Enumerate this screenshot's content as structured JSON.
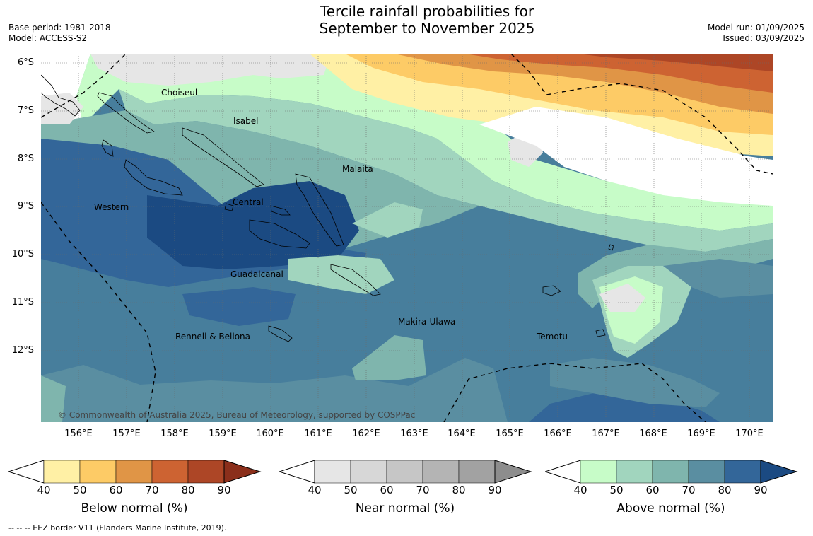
{
  "header": {
    "title_line1": "Tercile rainfall probabilities for",
    "title_line2": "September to November 2025",
    "base_period": "Base period: 1981-2018",
    "model": "Model: ACCESS-S2",
    "model_run": "Model run: 01/09/2025",
    "issued": "Issued: 03/09/2025"
  },
  "map": {
    "lat_labels": [
      "6°S",
      "7°S",
      "8°S",
      "9°S",
      "10°S",
      "11°S",
      "12°S"
    ],
    "lon_labels": [
      "156°E",
      "157°E",
      "158°E",
      "159°E",
      "160°E",
      "161°E",
      "162°E",
      "163°E",
      "164°E",
      "165°E",
      "166°E",
      "167°E",
      "168°E",
      "169°E",
      "170°E"
    ],
    "places": [
      "Choiseul",
      "Isabel",
      "Malaita",
      "Western",
      "Central",
      "Guadalcanal",
      "Makira-Ulawa",
      "Rennell & Bellona",
      "Temotu"
    ],
    "copyright": "© Commonwealth of Australia 2025, Bureau of Meteorology, supported by COSPPac"
  },
  "colorbars": [
    {
      "title": "Below normal (%)",
      "ticks": [
        "40",
        "50",
        "60",
        "70",
        "80",
        "90"
      ],
      "colors": [
        "#fff0a5",
        "#fdcb66",
        "#e09546",
        "#cd6332",
        "#ad4626",
        "#8b2f1b"
      ]
    },
    {
      "title": "Near normal (%)",
      "ticks": [
        "40",
        "50",
        "60",
        "70",
        "80",
        "90"
      ],
      "colors": [
        "#e6e6e6",
        "#d7d7d7",
        "#c6c6c6",
        "#b4b4b4",
        "#a2a2a2",
        "#8d8d8d"
      ]
    },
    {
      "title": "Above normal (%)",
      "ticks": [
        "40",
        "50",
        "60",
        "70",
        "80",
        "90"
      ],
      "colors": [
        "#c7fcc8",
        "#a1d5be",
        "#7fb5ad",
        "#5a8ea1",
        "#336699",
        "#1b4a82"
      ]
    }
  ],
  "footer": "--  --  -- EEZ border V11 (Flanders Marine Institute, 2019)."
}
